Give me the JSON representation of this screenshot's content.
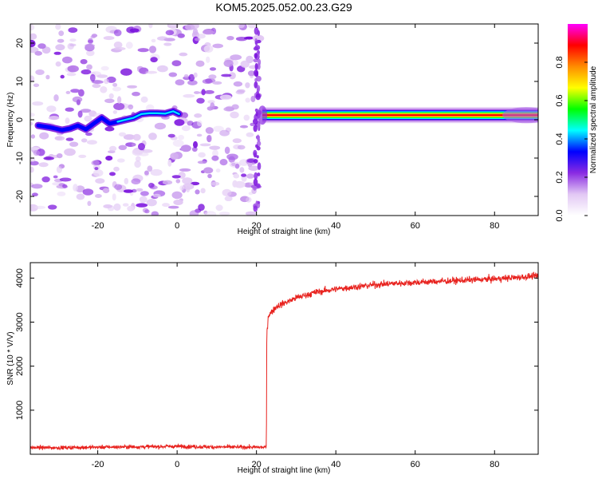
{
  "title": "KOM5.2025.052.00.23.G29",
  "chart_data": [
    {
      "type": "heatmap",
      "xlabel": "Height of straight line (km)",
      "ylabel": "Frequency (Hz)",
      "xlim": [
        -37,
        91
      ],
      "ylim": [
        -25,
        25
      ],
      "xticks": [
        -20,
        0,
        20,
        40,
        60,
        80
      ],
      "yticks": [
        -20,
        -10,
        0,
        10,
        20
      ],
      "xtick_labels": [
        "-20",
        "0",
        "20",
        "40",
        "60",
        "80"
      ],
      "ytick_labels": [
        "-20",
        "-10",
        "0",
        "10",
        "20"
      ],
      "noise_region_x": [
        -37,
        20.5
      ],
      "signal_region_x": [
        20.5,
        91
      ],
      "ridge_segment_1": {
        "x": [
          -35,
          -32,
          -29,
          -27,
          -25,
          -23,
          -21,
          -19,
          -17,
          -15,
          -13,
          -11,
          -9,
          -7,
          -5,
          -3,
          -1,
          0.5
        ],
        "y": [
          -1.5,
          -2,
          -2.7,
          -2.3,
          -1.5,
          -2.5,
          -1,
          0.5,
          -1,
          -0.5,
          0,
          0.5,
          1.5,
          1.7,
          1.7,
          1.6,
          2.2,
          1.5
        ]
      },
      "signal_ridge": {
        "x": [
          21.5,
          91
        ],
        "freq": 1.2,
        "peak_amplitude": 1.0
      },
      "colorbar": {
        "label": "Normalized spectral amplitude",
        "range": [
          0.0,
          1.0
        ],
        "ticks": [
          0.0,
          0.2,
          0.4,
          0.6,
          0.8
        ],
        "tick_labels": [
          "0.0",
          "0.2",
          "0.4",
          "0.6",
          "0.8"
        ],
        "colors": [
          "#ffffff",
          "#e2c8f4",
          "#8a2be2",
          "#0000ff",
          "#00ffff",
          "#00ff00",
          "#ffff00",
          "#ff8c00",
          "#ff0000",
          "#ff00ff"
        ]
      }
    },
    {
      "type": "line",
      "xlabel": "Height of straight line (km)",
      "ylabel": "SNR (10 * V/V)",
      "xlim": [
        -37,
        91
      ],
      "ylim": [
        0,
        4350
      ],
      "xticks": [
        -20,
        0,
        20,
        40,
        60,
        80
      ],
      "yticks": [
        1000,
        2000,
        3000,
        4000
      ],
      "xtick_labels": [
        "-20",
        "0",
        "20",
        "40",
        "60",
        "80"
      ],
      "ytick_labels": [
        "1000",
        "2000",
        "3000",
        "4000"
      ],
      "series": [
        {
          "color": "#e8231f",
          "x": [
            -37,
            -30,
            -20,
            -10,
            0,
            10,
            20,
            22.5,
            22.6,
            23,
            25,
            30,
            35,
            40,
            45,
            50,
            55,
            60,
            65,
            70,
            75,
            80,
            85,
            91
          ],
          "y": [
            150,
            150,
            160,
            170,
            180,
            165,
            160,
            160,
            2750,
            3150,
            3350,
            3550,
            3680,
            3750,
            3800,
            3850,
            3880,
            3900,
            3920,
            3940,
            3960,
            3980,
            4010,
            4050
          ]
        }
      ]
    }
  ]
}
